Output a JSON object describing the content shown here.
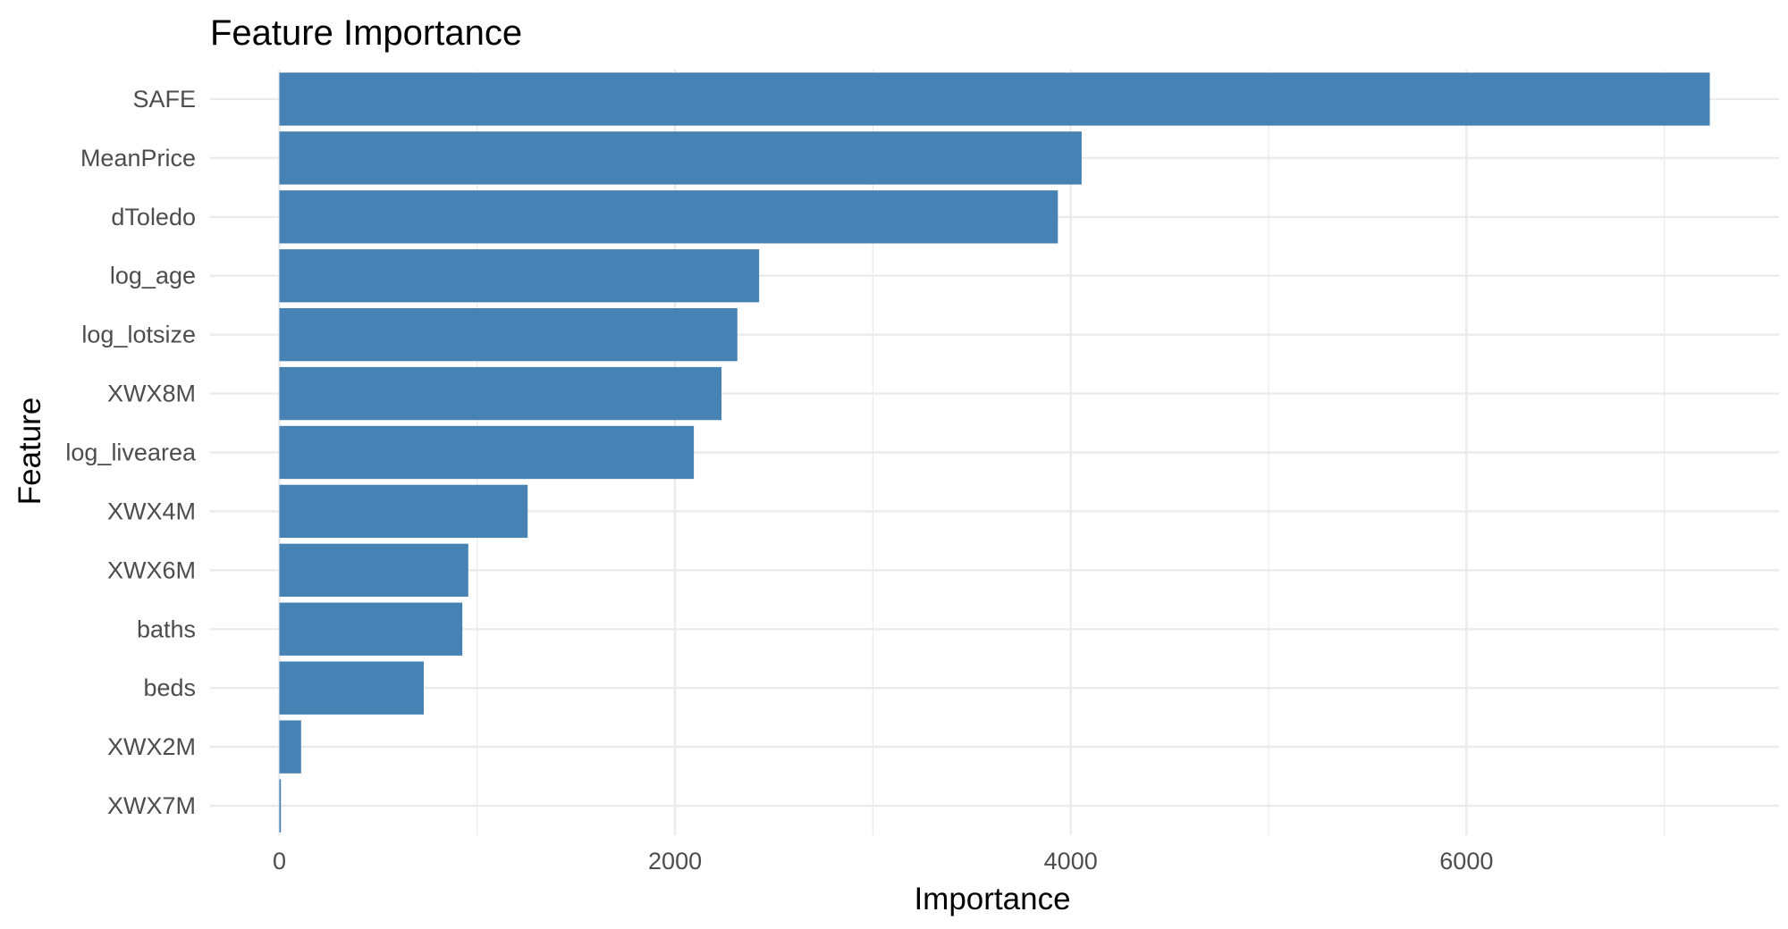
{
  "chart_data": {
    "type": "bar",
    "orientation": "horizontal",
    "title": "Feature Importance",
    "xlabel": "Importance",
    "ylabel": "Feature",
    "categories": [
      "SAFE",
      "MeanPrice",
      "dToledo",
      "log_age",
      "log_lotsize",
      "XWX8M",
      "log_livearea",
      "XWX4M",
      "XWX6M",
      "baths",
      "beds",
      "XWX2M",
      "XWX7M"
    ],
    "values": [
      7230,
      4055,
      3935,
      2425,
      2315,
      2235,
      2095,
      1255,
      955,
      925,
      730,
      110,
      8
    ],
    "xlim": [
      -350,
      7580
    ],
    "x_ticks": [
      0,
      2000,
      4000,
      6000
    ],
    "x_tick_labels": [
      "0",
      "2000",
      "4000",
      "6000"
    ],
    "bar_color": "#4682b4",
    "grid": true,
    "legend": "none"
  }
}
